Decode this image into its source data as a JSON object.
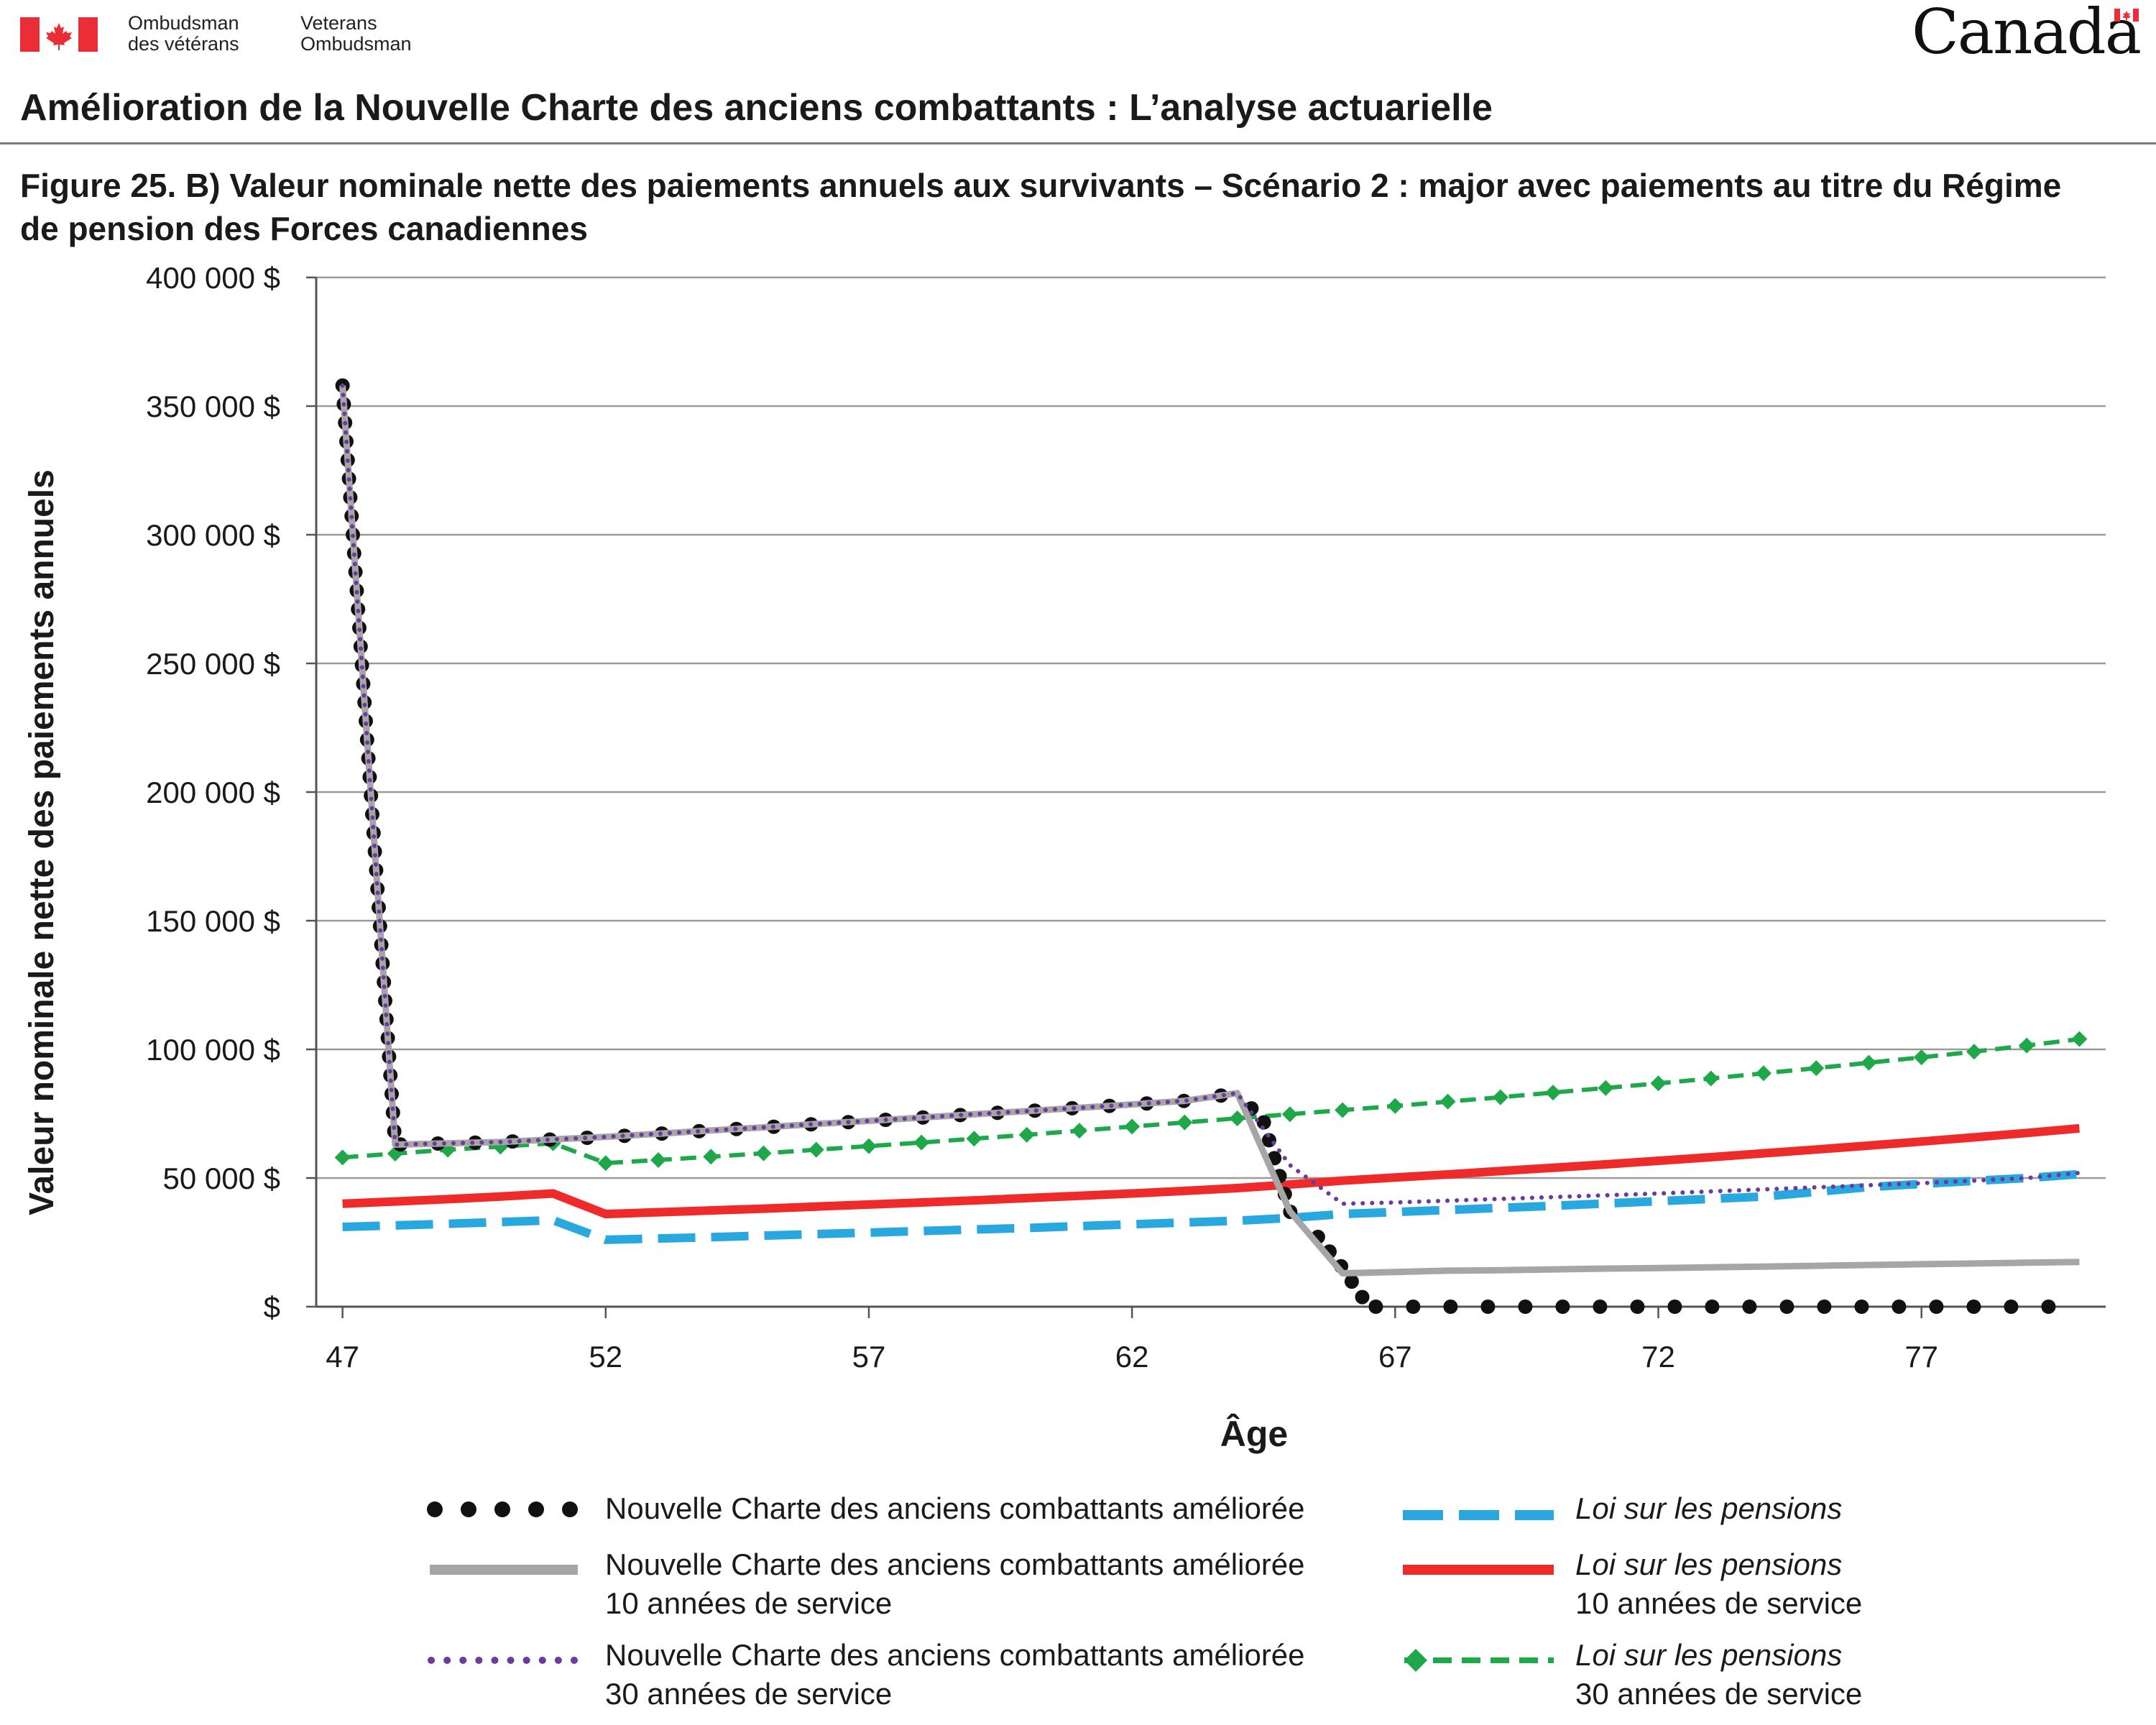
{
  "header": {
    "org_fr_line1": "Ombudsman",
    "org_fr_line2": "des vétérans",
    "org_en_line1": "Veterans",
    "org_en_line2": "Ombudsman",
    "wordmark": "Canada"
  },
  "page_title": "Amélioration de la Nouvelle Charte des anciens combattants : L’analyse actuarielle",
  "figure_title": "Figure 25. B) Valeur nominale nette des paiements annuels aux survivants – Scénario 2 : major avec paiements au titre du Régime de pension des Forces canadiennes",
  "colors": {
    "ncac": "#111111",
    "ncac10": "#a6a6a6",
    "ncac30": "#6b3aa0",
    "loi": "#29a8e0",
    "loi10": "#ee2a2a",
    "loi30": "#1fa84a",
    "grid": "#9a9a9a",
    "flag_red": "#eb2d37"
  },
  "legend": {
    "ncac": {
      "line1": "Nouvelle Charte des anciens combattants améliorée",
      "line2": ""
    },
    "ncac10": {
      "line1": "Nouvelle Charte des anciens combattants améliorée",
      "line2": "10 années de service"
    },
    "ncac30": {
      "line1": "Nouvelle Charte des anciens combattants améliorée",
      "line2": "30 années de service"
    },
    "loi": {
      "line1": "Loi sur les pensions",
      "line2": ""
    },
    "loi10": {
      "line1": "Loi sur les pensions",
      "line2": "10 années de service"
    },
    "loi30": {
      "line1": "Loi sur les pensions",
      "line2": "30 années de service"
    }
  },
  "chart_data": {
    "type": "line",
    "title": "",
    "xlabel": "Âge",
    "ylabel": "Valeur nominale nette des paiements annuels",
    "xlim": [
      46.5,
      80.5
    ],
    "ylim": [
      0,
      400000
    ],
    "xticks": [
      47,
      52,
      57,
      62,
      67,
      72,
      77
    ],
    "yticks": [
      0,
      50000,
      100000,
      150000,
      200000,
      250000,
      300000,
      350000,
      400000
    ],
    "ytick_labels": [
      "$",
      "50 000 $",
      "100 000 $",
      "150 000 $",
      "200 000 $",
      "250 000 $",
      "300 000 $",
      "350 000 $",
      "400 000 $"
    ],
    "grid": "horizontal",
    "legend_position": "bottom",
    "series": [
      {
        "key": "ncac",
        "name": "Nouvelle Charte des anciens combattants améliorée",
        "points": [
          [
            47,
            358000
          ],
          [
            48,
            63000
          ],
          [
            49,
            63500
          ],
          [
            50,
            64000
          ],
          [
            51,
            65000
          ],
          [
            52,
            66000
          ],
          [
            53,
            67200
          ],
          [
            54,
            68500
          ],
          [
            55,
            69700
          ],
          [
            56,
            71000
          ],
          [
            57,
            72200
          ],
          [
            58,
            73500
          ],
          [
            59,
            74800
          ],
          [
            60,
            76000
          ],
          [
            61,
            77300
          ],
          [
            62,
            78600
          ],
          [
            63,
            80000
          ],
          [
            64,
            83000
          ],
          [
            64.5,
            72000
          ],
          [
            65,
            37000
          ],
          [
            65.5,
            28000
          ],
          [
            66,
            15000
          ],
          [
            66.5,
            0
          ],
          [
            67,
            0
          ],
          [
            68,
            0
          ],
          [
            69,
            0
          ],
          [
            70,
            0
          ],
          [
            71,
            0
          ],
          [
            72,
            0
          ],
          [
            73,
            0
          ],
          [
            74,
            0
          ],
          [
            75,
            0
          ],
          [
            76,
            0
          ],
          [
            77,
            0
          ],
          [
            78,
            0
          ],
          [
            79,
            0
          ],
          [
            80,
            0
          ]
        ]
      },
      {
        "key": "ncac10",
        "name": "Nouvelle Charte des anciens combattants améliorée 10 années de service",
        "points": [
          [
            47,
            358000
          ],
          [
            48,
            63000
          ],
          [
            49,
            63500
          ],
          [
            50,
            64000
          ],
          [
            51,
            65000
          ],
          [
            52,
            66000
          ],
          [
            53,
            67200
          ],
          [
            54,
            68500
          ],
          [
            55,
            69700
          ],
          [
            56,
            71000
          ],
          [
            57,
            72200
          ],
          [
            58,
            73500
          ],
          [
            59,
            74800
          ],
          [
            60,
            76000
          ],
          [
            61,
            77300
          ],
          [
            62,
            78600
          ],
          [
            63,
            80000
          ],
          [
            64,
            83000
          ],
          [
            65,
            37000
          ],
          [
            66,
            13000
          ],
          [
            67,
            13500
          ],
          [
            68,
            14000
          ],
          [
            69,
            14200
          ],
          [
            70,
            14500
          ],
          [
            71,
            14800
          ],
          [
            72,
            15000
          ],
          [
            73,
            15300
          ],
          [
            74,
            15600
          ],
          [
            75,
            15900
          ],
          [
            76,
            16200
          ],
          [
            77,
            16500
          ],
          [
            78,
            16800
          ],
          [
            79,
            17100
          ],
          [
            80,
            17400
          ]
        ]
      },
      {
        "key": "ncac30",
        "name": "Nouvelle Charte des anciens combattants améliorée 30 années de service",
        "points": [
          [
            47,
            358000
          ],
          [
            48,
            63000
          ],
          [
            49,
            63500
          ],
          [
            50,
            64000
          ],
          [
            51,
            65000
          ],
          [
            52,
            66000
          ],
          [
            53,
            67200
          ],
          [
            54,
            68500
          ],
          [
            55,
            69700
          ],
          [
            56,
            71000
          ],
          [
            57,
            72200
          ],
          [
            58,
            73500
          ],
          [
            59,
            74800
          ],
          [
            60,
            76000
          ],
          [
            61,
            77300
          ],
          [
            62,
            78600
          ],
          [
            63,
            80000
          ],
          [
            64,
            83000
          ],
          [
            65,
            55000
          ],
          [
            66,
            40000
          ],
          [
            67,
            40500
          ],
          [
            68,
            41200
          ],
          [
            69,
            41900
          ],
          [
            70,
            42600
          ],
          [
            71,
            43300
          ],
          [
            72,
            44000
          ],
          [
            73,
            44800
          ],
          [
            74,
            45600
          ],
          [
            75,
            46400
          ],
          [
            76,
            47200
          ],
          [
            77,
            48000
          ],
          [
            78,
            49000
          ],
          [
            79,
            50000
          ],
          [
            80,
            52000
          ]
        ]
      },
      {
        "key": "loi",
        "name": "Loi sur les pensions",
        "points": [
          [
            47,
            31000
          ],
          [
            48,
            31600
          ],
          [
            49,
            32200
          ],
          [
            50,
            32900
          ],
          [
            51,
            33600
          ],
          [
            52,
            26000
          ],
          [
            53,
            26500
          ],
          [
            54,
            27000
          ],
          [
            55,
            27600
          ],
          [
            56,
            28200
          ],
          [
            57,
            28800
          ],
          [
            58,
            29400
          ],
          [
            59,
            30000
          ],
          [
            60,
            30600
          ],
          [
            61,
            31300
          ],
          [
            62,
            32000
          ],
          [
            63,
            32700
          ],
          [
            64,
            33400
          ],
          [
            65,
            34500
          ],
          [
            66,
            36000
          ],
          [
            67,
            36800
          ],
          [
            68,
            37600
          ],
          [
            69,
            38400
          ],
          [
            70,
            39200
          ],
          [
            71,
            40100
          ],
          [
            72,
            41000
          ],
          [
            73,
            41900
          ],
          [
            74,
            42800
          ],
          [
            75,
            44600
          ],
          [
            76,
            46500
          ],
          [
            77,
            47700
          ],
          [
            78,
            48900
          ],
          [
            79,
            50000
          ],
          [
            80,
            51500
          ]
        ]
      },
      {
        "key": "loi10",
        "name": "Loi sur les pensions 10 années de service",
        "points": [
          [
            47,
            40000
          ],
          [
            48,
            40900
          ],
          [
            49,
            41800
          ],
          [
            50,
            42800
          ],
          [
            51,
            44000
          ],
          [
            52,
            36000
          ],
          [
            53,
            36700
          ],
          [
            54,
            37400
          ],
          [
            55,
            38100
          ],
          [
            56,
            38900
          ],
          [
            57,
            39700
          ],
          [
            58,
            40500
          ],
          [
            59,
            41300
          ],
          [
            60,
            42200
          ],
          [
            61,
            43100
          ],
          [
            62,
            44000
          ],
          [
            63,
            45000
          ],
          [
            64,
            46100
          ],
          [
            65,
            47500
          ],
          [
            66,
            49000
          ],
          [
            67,
            50200
          ],
          [
            68,
            51400
          ],
          [
            69,
            52700
          ],
          [
            70,
            54000
          ],
          [
            71,
            55300
          ],
          [
            72,
            56700
          ],
          [
            73,
            58100
          ],
          [
            74,
            59600
          ],
          [
            75,
            61100
          ],
          [
            76,
            62600
          ],
          [
            77,
            64200
          ],
          [
            78,
            65800
          ],
          [
            79,
            67500
          ],
          [
            80,
            69300
          ]
        ]
      },
      {
        "key": "loi30",
        "name": "Loi sur les pensions 30 années de service",
        "points": [
          [
            47,
            58000
          ],
          [
            48,
            59500
          ],
          [
            49,
            61000
          ],
          [
            50,
            62200
          ],
          [
            51,
            63500
          ],
          [
            52,
            55800
          ],
          [
            53,
            57000
          ],
          [
            54,
            58300
          ],
          [
            55,
            59600
          ],
          [
            56,
            61000
          ],
          [
            57,
            62400
          ],
          [
            58,
            63800
          ],
          [
            59,
            65300
          ],
          [
            60,
            66800
          ],
          [
            61,
            68400
          ],
          [
            62,
            70000
          ],
          [
            63,
            71600
          ],
          [
            64,
            73200
          ],
          [
            65,
            74800
          ],
          [
            66,
            76400
          ],
          [
            67,
            78000
          ],
          [
            68,
            79700
          ],
          [
            69,
            81400
          ],
          [
            70,
            83200
          ],
          [
            71,
            85000
          ],
          [
            72,
            86800
          ],
          [
            73,
            88700
          ],
          [
            74,
            90700
          ],
          [
            75,
            92700
          ],
          [
            76,
            94800
          ],
          [
            77,
            96900
          ],
          [
            78,
            99100
          ],
          [
            79,
            101500
          ],
          [
            80,
            104000
          ]
        ]
      }
    ]
  }
}
